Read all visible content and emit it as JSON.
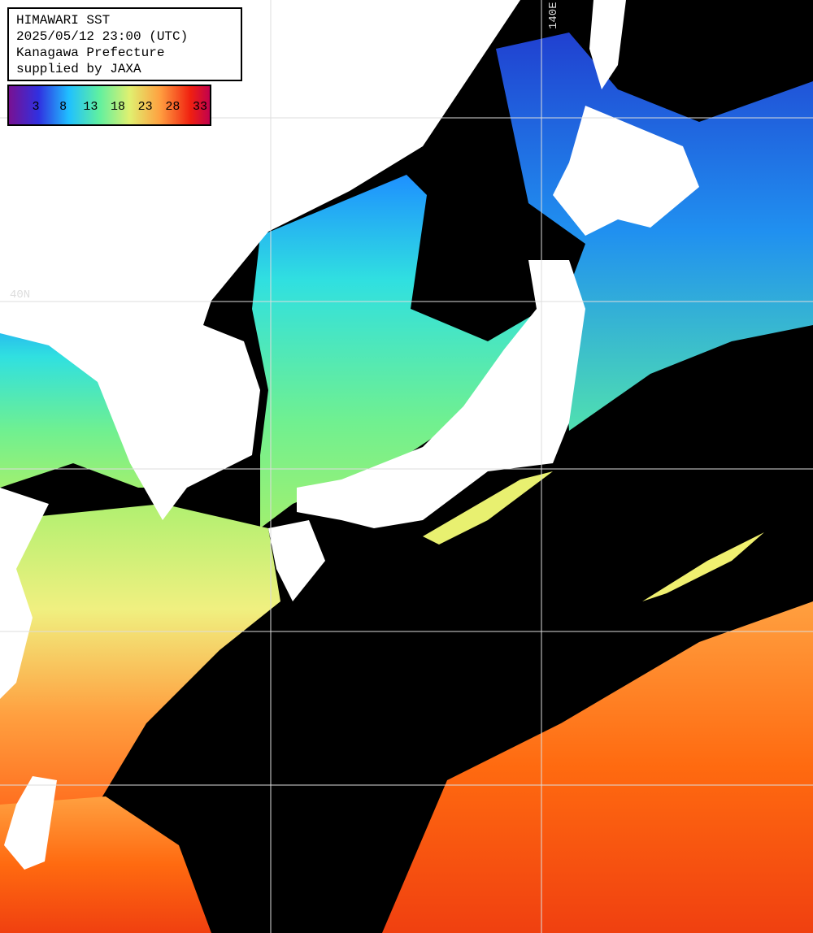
{
  "header": {
    "lines": [
      "HIMAWARI SST",
      "2025/05/12 23:00 (UTC)",
      "Kanagawa Prefecture",
      "supplied by JAXA"
    ]
  },
  "legend": {
    "ticks": [
      3,
      8,
      13,
      18,
      23,
      28,
      33
    ]
  },
  "grid_labels": {
    "lat": "40N",
    "lon": "140E"
  }
}
